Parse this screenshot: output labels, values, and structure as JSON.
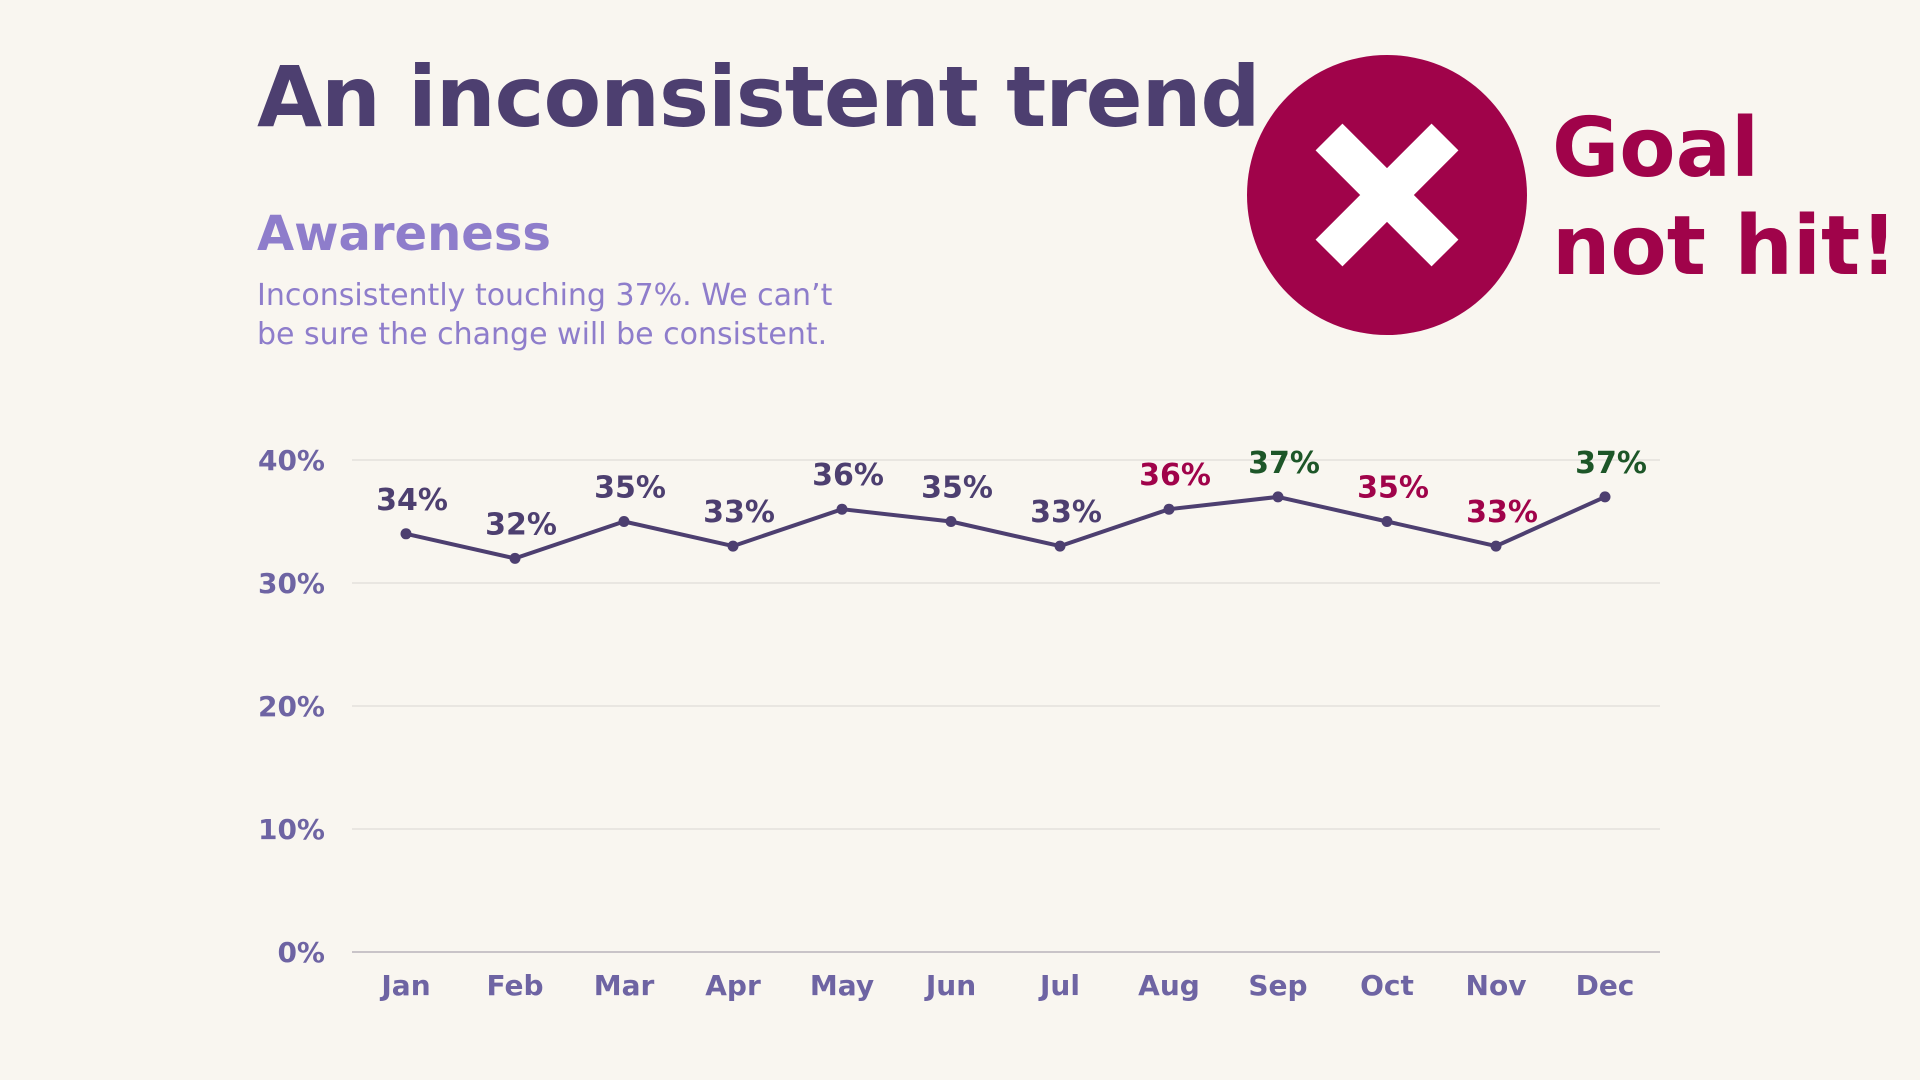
{
  "title": "An inconsistent trend",
  "subtitle": "Awareness",
  "description": "Inconsistently touching 37%. We can’t be sure the change will be consistent.",
  "goal": {
    "line1": "Goal",
    "line2": "not hit!",
    "icon": "x-circle-icon"
  },
  "colors": {
    "background": "#f9f6f0",
    "line": "#4d3f70",
    "default_label": "#4d3f70",
    "miss": "#a0034a",
    "hit": "#1d5628",
    "axis": "#6e64a3",
    "grid": "#e0ddd8"
  },
  "chart_data": {
    "type": "line",
    "title": "Awareness",
    "xlabel": "",
    "ylabel": "",
    "ylim": [
      0,
      40
    ],
    "yticks": [
      0,
      10,
      20,
      30,
      40
    ],
    "ytick_labels": [
      "0%",
      "10%",
      "20%",
      "30%",
      "40%"
    ],
    "grid": true,
    "categories": [
      "Jan",
      "Feb",
      "Mar",
      "Apr",
      "May",
      "Jun",
      "Jul",
      "Aug",
      "Sep",
      "Oct",
      "Nov",
      "Dec"
    ],
    "series": [
      {
        "name": "Awareness",
        "values": [
          34,
          32,
          35,
          33,
          36,
          35,
          33,
          36,
          37,
          35,
          33,
          37
        ],
        "labels": [
          "34%",
          "32%",
          "35%",
          "33%",
          "36%",
          "35%",
          "33%",
          "36%",
          "37%",
          "35%",
          "33%",
          "37%"
        ],
        "label_status": [
          "default",
          "default",
          "default",
          "default",
          "default",
          "default",
          "default",
          "miss",
          "hit",
          "miss",
          "miss",
          "hit"
        ]
      }
    ]
  }
}
